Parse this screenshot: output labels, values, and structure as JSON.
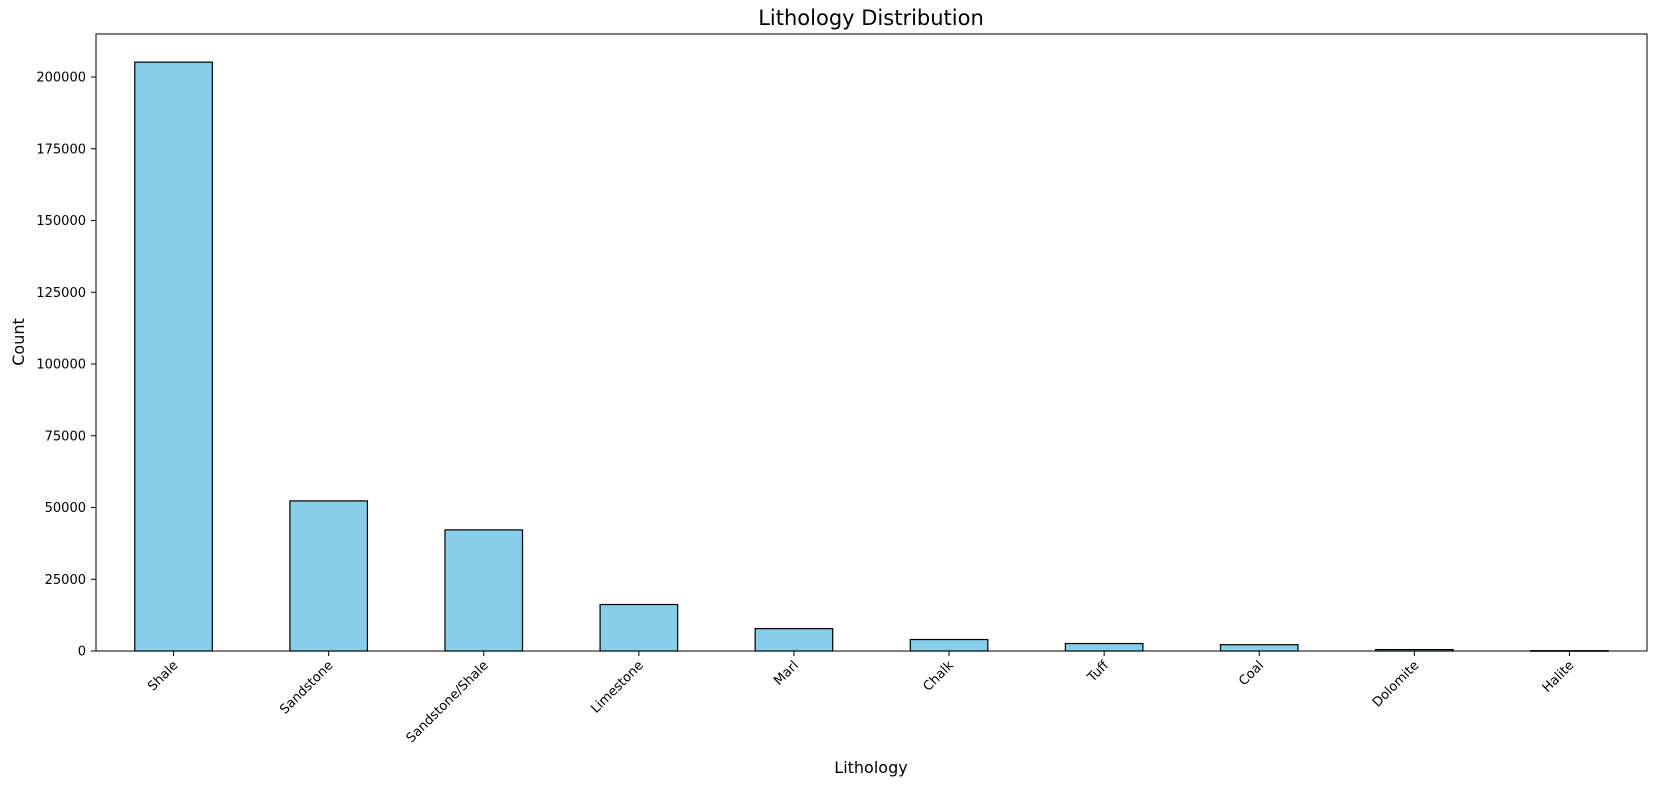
{
  "chart_data": {
    "type": "bar",
    "title": "Lithology Distribution",
    "xlabel": "Lithology",
    "ylabel": "Count",
    "categories": [
      "Shale",
      "Sandstone",
      "Sandstone/Shale",
      "Limestone",
      "Marl",
      "Chalk",
      "Tuff",
      "Coal",
      "Dolomite",
      "Halite"
    ],
    "values": [
      205200,
      52300,
      42200,
      16200,
      7800,
      4000,
      2600,
      2200,
      500,
      100
    ],
    "ylim": [
      0,
      215000
    ],
    "yticks": [
      0,
      25000,
      50000,
      75000,
      100000,
      125000,
      150000,
      175000,
      200000
    ],
    "grid": false,
    "colors": {
      "bar_fill": "#87ceeb",
      "bar_edge": "#000000"
    }
  }
}
